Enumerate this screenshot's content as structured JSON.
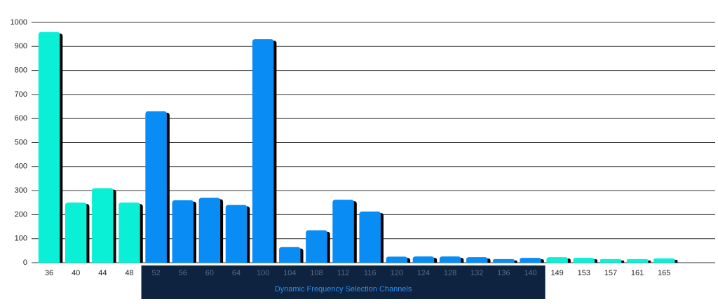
{
  "chart_data": {
    "type": "bar",
    "categories": [
      "36",
      "40",
      "44",
      "48",
      "52",
      "56",
      "60",
      "64",
      "100",
      "104",
      "108",
      "112",
      "116",
      "120",
      "124",
      "128",
      "132",
      "136",
      "140",
      "149",
      "153",
      "157",
      "161",
      "165"
    ],
    "values": [
      960,
      250,
      310,
      250,
      630,
      260,
      270,
      240,
      930,
      65,
      135,
      262,
      213,
      25,
      26,
      26,
      23,
      15,
      20,
      23,
      20,
      15,
      15,
      18
    ],
    "colors": [
      "#0af0d6",
      "#0af0d6",
      "#0af0d6",
      "#0af0d6",
      "#0a8cf5",
      "#0a8cf5",
      "#0a8cf5",
      "#0a8cf5",
      "#0a8cf5",
      "#0a8cf5",
      "#0a8cf5",
      "#0a8cf5",
      "#0a8cf5",
      "#0a8cf5",
      "#0a8cf5",
      "#0a8cf5",
      "#0a8cf5",
      "#0a8cf5",
      "#0a8cf5",
      "#0af0d6",
      "#0af0d6",
      "#0af0d6",
      "#0af0d6",
      "#0af0d6"
    ],
    "annotation": "Dynamic Frequency Selection Channels",
    "ylim": [
      0,
      1000
    ],
    "yticks": [
      0,
      100,
      200,
      300,
      400,
      500,
      600,
      700,
      800,
      900,
      1000
    ],
    "grid": true
  }
}
